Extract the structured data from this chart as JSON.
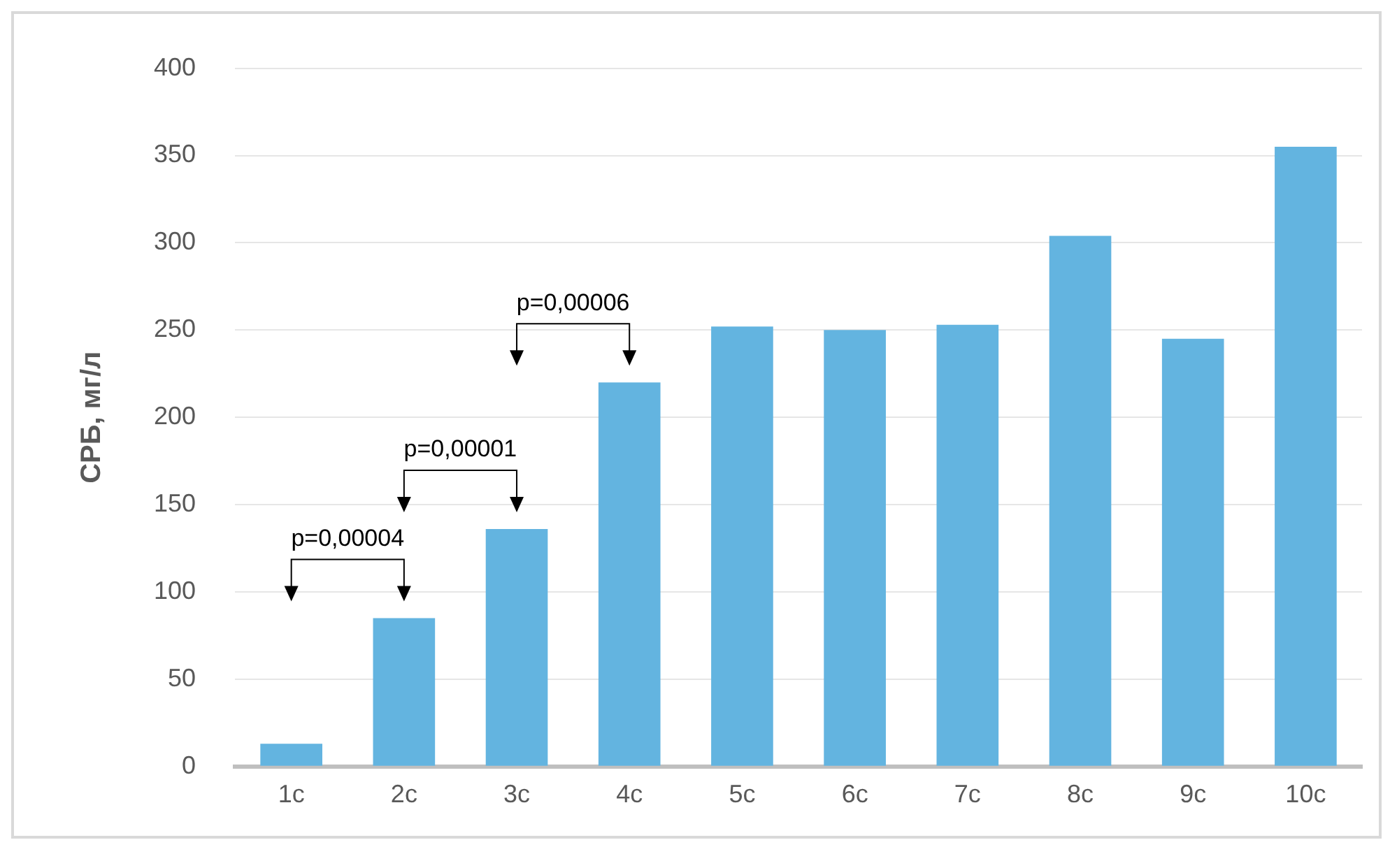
{
  "chart_data": {
    "type": "bar",
    "ylabel": "СРБ, мг/л",
    "categories": [
      "1с",
      "2с",
      "3с",
      "4с",
      "5с",
      "6с",
      "7с",
      "8с",
      "9с",
      "10с"
    ],
    "values": [
      13,
      85,
      136,
      220,
      252,
      250,
      253,
      304,
      245,
      355
    ],
    "color": "#63b4e0",
    "ylim": [
      0,
      400
    ],
    "yticks": [
      0,
      50,
      100,
      150,
      200,
      250,
      300,
      350,
      400
    ],
    "grid": "y",
    "legend": false,
    "annotations": [
      "p=0,00004",
      "p=0,00001",
      "p=0,00006"
    ]
  }
}
